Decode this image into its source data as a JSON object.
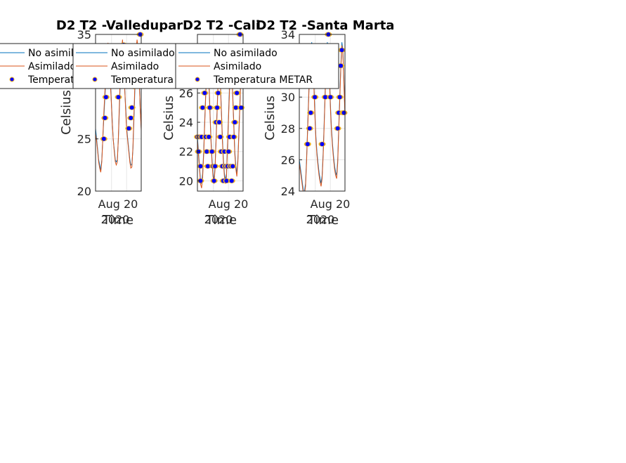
{
  "chart_data": [
    {
      "type": "line",
      "title": "D2 T2  -Valledupar",
      "xlabel": "Time",
      "ylabel": "Celsius",
      "x_ticks": [
        "Aug 20",
        "2020"
      ],
      "y_ticks": [
        20,
        25,
        35
      ],
      "ylim": [
        20,
        35
      ],
      "grid": true,
      "legend_position": "top-left",
      "series": [
        {
          "name": "No asimilado",
          "color": "#0072bd",
          "values": [
            26,
            25,
            24,
            23,
            22.5,
            22,
            23,
            25,
            27,
            29,
            31,
            33,
            34,
            33,
            31,
            29,
            27,
            25,
            24,
            23,
            22.8,
            23,
            25,
            28,
            31,
            33,
            34,
            32,
            30,
            28,
            26,
            25,
            24,
            23,
            22.5,
            22.5,
            24,
            27,
            30,
            33,
            34,
            33,
            31,
            28,
            26
          ]
        },
        {
          "name": "Asimilado",
          "color": "#d95319",
          "values": [
            25.5,
            24.8,
            23.8,
            22.8,
            22.2,
            21.8,
            22.8,
            25,
            27.5,
            29.5,
            31.5,
            33.5,
            34.2,
            33.2,
            31,
            28.8,
            26.8,
            25,
            23.8,
            22.8,
            22.5,
            22.8,
            25.2,
            28.5,
            31.5,
            33.5,
            34.5,
            32.5,
            30,
            27.8,
            25.8,
            24.8,
            23.8,
            22.8,
            22.2,
            22.3,
            24.2,
            27.5,
            30.5,
            33.5,
            34.5,
            33.5,
            31,
            28,
            25.8
          ]
        },
        {
          "name": "Temperatura METAR",
          "color": "#0000ff",
          "marker_edge": "#edb120",
          "x_index": [
            8,
            9,
            10,
            11,
            13,
            16,
            17,
            22,
            26,
            27,
            29,
            32,
            34,
            35,
            37,
            40,
            43
          ],
          "values": [
            25,
            27,
            29,
            31,
            33,
            33,
            31,
            29,
            33,
            34,
            31,
            26,
            27,
            28,
            30,
            33,
            35
          ]
        }
      ]
    },
    {
      "type": "line",
      "title": "D2 T2  -Cali",
      "xlabel": "Time",
      "ylabel": "Celsius",
      "x_ticks": [
        "Aug 20",
        "2020"
      ],
      "y_ticks": [
        20,
        22,
        24,
        26
      ],
      "ylim": [
        19.3,
        30
      ],
      "grid": true,
      "legend_position": "top-left",
      "series": [
        {
          "name": "No asimilado",
          "color": "#0072bd",
          "values": [
            23,
            22,
            21,
            20,
            19.8,
            20.5,
            22,
            24,
            26,
            27.5,
            28,
            27,
            25,
            23,
            21.5,
            20.5,
            20,
            21,
            23,
            25,
            27,
            28,
            27,
            25,
            23,
            21.5,
            20.5,
            20,
            20.5,
            22.5,
            24.5,
            26.5,
            28,
            27.5,
            26,
            24,
            22,
            21,
            20.5,
            21.5,
            23.5,
            25.5,
            27.5,
            28,
            27
          ]
        },
        {
          "name": "Asimilado",
          "color": "#d95319",
          "values": [
            22.8,
            21.8,
            20.8,
            19.8,
            19.5,
            20.2,
            21.8,
            23.8,
            25.8,
            27.3,
            27.8,
            26.8,
            24.8,
            22.8,
            21.3,
            20.3,
            19.8,
            20.8,
            22.8,
            24.8,
            26.8,
            27.8,
            26.8,
            24.8,
            22.8,
            21.3,
            20.3,
            19.8,
            20.3,
            22.3,
            24.3,
            26.3,
            27.8,
            27.3,
            25.8,
            23.8,
            21.8,
            20.8,
            20.3,
            21.3,
            23.3,
            25.3,
            27.3,
            27.8,
            26.8
          ]
        },
        {
          "name": "Temperatura METAR",
          "color": "#0000ff",
          "marker_edge": "#edb120",
          "x_index": [
            0,
            1,
            2,
            3,
            3,
            4,
            5,
            6,
            7,
            8,
            9,
            10,
            11,
            12,
            13,
            14,
            15,
            16,
            17,
            18,
            19,
            20,
            21,
            22,
            23,
            24,
            25,
            26,
            27,
            28,
            29,
            30,
            31,
            32,
            33,
            34,
            35,
            36,
            37,
            38,
            39,
            40,
            41,
            42
          ],
          "values": [
            23,
            22,
            23,
            21,
            20,
            23,
            25,
            27,
            26,
            23,
            22,
            21,
            23,
            25,
            27,
            22,
            21,
            20,
            21,
            24,
            25,
            26,
            24,
            23,
            22,
            21,
            20,
            22,
            21,
            20,
            21,
            22,
            23,
            21,
            20,
            21,
            23,
            24,
            25,
            26,
            27,
            29,
            30,
            25
          ]
        }
      ]
    },
    {
      "type": "line",
      "title": "D2 T2  -Santa Marta",
      "xlabel": "Time",
      "ylabel": "Celsius",
      "x_ticks": [
        "Aug 20",
        "2020"
      ],
      "y_ticks": [
        24,
        26,
        28,
        30,
        34
      ],
      "ylim": [
        24,
        34
      ],
      "grid": true,
      "legend_position": "top-left",
      "series": [
        {
          "name": "No asimilado",
          "color": "#0072bd",
          "values": [
            26,
            25.5,
            25,
            24.5,
            24,
            24,
            24.5,
            26,
            28,
            30,
            32,
            33,
            33.5,
            32.5,
            31,
            29,
            27.5,
            26.5,
            25.8,
            25.2,
            24.8,
            24.5,
            25,
            26.5,
            28.5,
            30.5,
            32.5,
            33.5,
            33,
            31.5,
            29.5,
            28,
            27,
            26.2,
            25.6,
            25.2,
            25,
            26,
            28,
            30,
            32,
            33.5,
            33,
            31,
            29
          ]
        },
        {
          "name": "Asimilado",
          "color": "#d95319",
          "values": [
            25.8,
            25.3,
            24.8,
            24.3,
            23.8,
            23.8,
            24.3,
            25.8,
            27.8,
            29.8,
            31.8,
            32.8,
            33.3,
            32.3,
            30.8,
            28.8,
            27.3,
            26.3,
            25.6,
            25,
            24.6,
            24.3,
            24.8,
            26.3,
            28.3,
            30.3,
            32.3,
            33.3,
            32.8,
            31.3,
            29.3,
            27.8,
            26.8,
            26,
            25.4,
            25,
            24.8,
            25.8,
            27.8,
            29.8,
            31.8,
            33.3,
            32.8,
            30.8,
            28.8
          ]
        },
        {
          "name": "Temperatura METAR",
          "color": "#0000ff",
          "marker_edge": "#edb120",
          "x_index": [
            8,
            10,
            11,
            12,
            13,
            14,
            15,
            16,
            22,
            25,
            27,
            28,
            30,
            31,
            32,
            37,
            38,
            39,
            40,
            41,
            42,
            43
          ],
          "values": [
            27,
            28,
            29,
            31,
            32,
            31,
            30,
            31,
            27,
            30,
            32,
            34,
            30,
            32,
            33,
            28,
            29,
            30,
            32,
            33,
            29,
            29
          ]
        }
      ]
    }
  ]
}
